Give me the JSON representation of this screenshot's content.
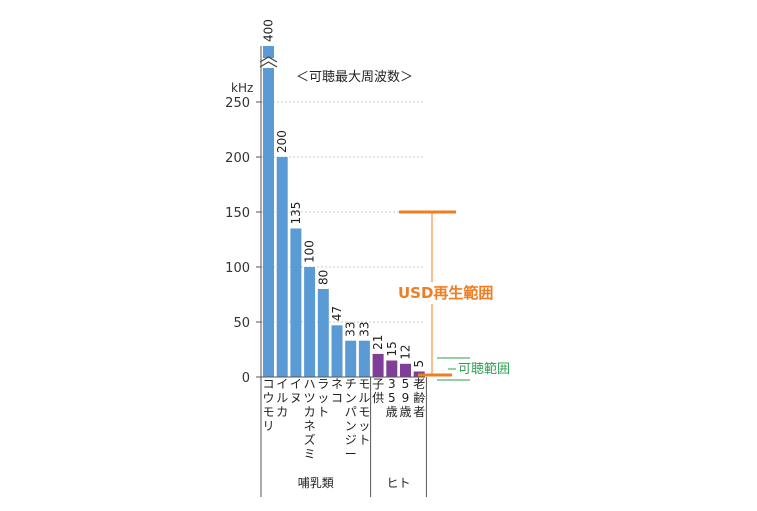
{
  "chart_data": {
    "type": "bar",
    "title": "＜可聴最大周波数＞",
    "ylabel": "kHz",
    "ylim": [
      0,
      290
    ],
    "y_ticks": [
      0,
      50,
      100,
      150,
      200,
      250
    ],
    "grid": true,
    "categories": [
      "コウモリ",
      "イルカ",
      "イヌ",
      "ハツカネズミ",
      "ラット",
      "ネコ",
      "チンパンジー",
      "モルモット",
      "子供",
      "35歳",
      "59歳",
      "老齢者"
    ],
    "values": [
      400,
      200,
      135,
      100,
      80,
      47,
      33,
      33,
      21,
      15,
      12,
      5
    ],
    "value_labels": [
      "400",
      "200",
      "135",
      "100",
      "80",
      "47",
      "33",
      "33",
      "21",
      "15",
      "12",
      "5"
    ],
    "groups": [
      {
        "name": "哺乳類",
        "count": 8,
        "color": "#5b9bd5"
      },
      {
        "name": "ヒト",
        "count": 4,
        "color": "#7f3f98"
      }
    ],
    "axis_break": true,
    "ranges": [
      {
        "label": "USD再生範囲",
        "from": 0,
        "to": 150,
        "color": "#ef7d22"
      },
      {
        "label": "可聴範囲",
        "from": 0,
        "to": 20,
        "color": "#2e9e52"
      }
    ]
  }
}
